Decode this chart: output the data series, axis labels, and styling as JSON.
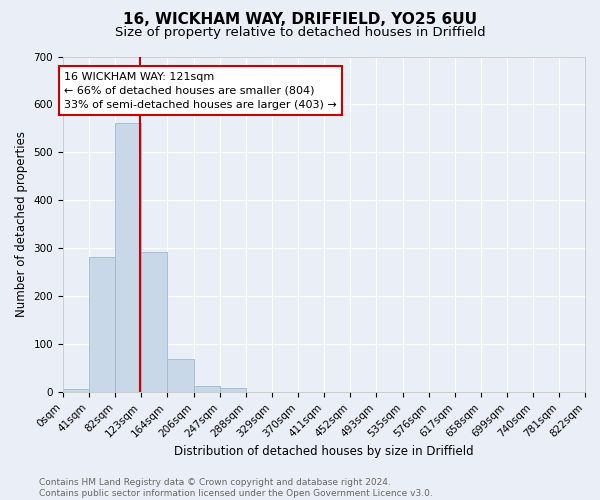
{
  "title": "16, WICKHAM WAY, DRIFFIELD, YO25 6UU",
  "subtitle": "Size of property relative to detached houses in Driffield",
  "xlabel": "Distribution of detached houses by size in Driffield",
  "ylabel": "Number of detached properties",
  "bar_edges": [
    0,
    41,
    82,
    123,
    164,
    206,
    247,
    288,
    329,
    370,
    411,
    452,
    493,
    535,
    576,
    617,
    658,
    699,
    740,
    781,
    822
  ],
  "bar_heights": [
    8,
    283,
    562,
    293,
    70,
    14,
    9,
    0,
    0,
    0,
    0,
    0,
    0,
    0,
    0,
    0,
    0,
    0,
    0,
    0
  ],
  "bar_color": "#c8d8e8",
  "bar_edgecolor": "#a0b8d0",
  "vline_x": 121,
  "vline_color": "#cc0000",
  "annotation_text": "16 WICKHAM WAY: 121sqm\n← 66% of detached houses are smaller (804)\n33% of semi-detached houses are larger (403) →",
  "annotation_box_color": "#ffffff",
  "annotation_box_edgecolor": "#cc0000",
  "ylim": [
    0,
    700
  ],
  "yticks": [
    0,
    100,
    200,
    300,
    400,
    500,
    600,
    700
  ],
  "xtick_labels": [
    "0sqm",
    "41sqm",
    "82sqm",
    "123sqm",
    "164sqm",
    "206sqm",
    "247sqm",
    "288sqm",
    "329sqm",
    "370sqm",
    "411sqm",
    "452sqm",
    "493sqm",
    "535sqm",
    "576sqm",
    "617sqm",
    "658sqm",
    "699sqm",
    "740sqm",
    "781sqm",
    "822sqm"
  ],
  "footer_text": "Contains HM Land Registry data © Crown copyright and database right 2024.\nContains public sector information licensed under the Open Government Licence v3.0.",
  "bg_color": "#eaeff7",
  "plot_bg_color": "#eaeff7",
  "title_fontsize": 11,
  "subtitle_fontsize": 9.5,
  "axis_label_fontsize": 8.5,
  "tick_fontsize": 7.5,
  "annotation_fontsize": 8,
  "footer_fontsize": 6.5
}
